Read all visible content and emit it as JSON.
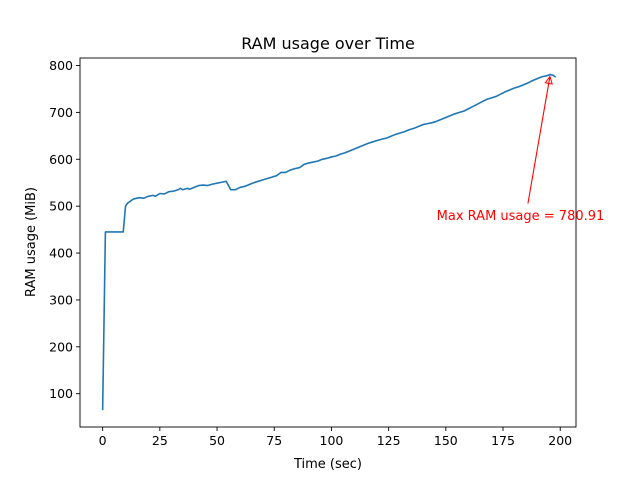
{
  "chart_data": {
    "type": "line",
    "title": "RAM usage over Time",
    "xlabel": "Time (sec)",
    "ylabel": "RAM usage (MiB)",
    "xlim": [
      -9.9,
      206.9
    ],
    "ylim": [
      29,
      816
    ],
    "x_ticks": [
      0,
      25,
      50,
      75,
      100,
      125,
      150,
      175,
      200
    ],
    "y_ticks": [
      100,
      200,
      300,
      400,
      500,
      600,
      700,
      800
    ],
    "grid": false,
    "legend": "none",
    "series_color": "#1f77b4",
    "series": [
      {
        "points": [
          [
            0,
            65
          ],
          [
            1.2,
            445
          ],
          [
            3,
            445
          ],
          [
            5,
            445
          ],
          [
            7,
            445
          ],
          [
            9,
            445
          ],
          [
            10,
            500
          ],
          [
            11,
            507
          ],
          [
            12,
            510
          ],
          [
            13,
            514
          ],
          [
            14,
            516
          ],
          [
            16,
            518
          ],
          [
            18,
            517
          ],
          [
            20,
            521
          ],
          [
            22,
            523
          ],
          [
            23,
            521
          ],
          [
            25,
            527
          ],
          [
            27,
            526
          ],
          [
            29,
            531
          ],
          [
            31,
            532
          ],
          [
            33,
            535
          ],
          [
            34,
            538
          ],
          [
            35,
            535
          ],
          [
            37,
            538
          ],
          [
            38,
            536
          ],
          [
            40,
            540
          ],
          [
            42,
            544
          ],
          [
            44,
            545
          ],
          [
            46,
            544
          ],
          [
            48,
            547
          ],
          [
            50,
            549
          ],
          [
            52,
            551
          ],
          [
            54,
            553
          ],
          [
            56,
            535
          ],
          [
            58,
            535
          ],
          [
            60,
            540
          ],
          [
            62,
            542
          ],
          [
            64,
            546
          ],
          [
            66,
            550
          ],
          [
            68,
            553
          ],
          [
            70,
            556
          ],
          [
            72,
            559
          ],
          [
            74,
            562
          ],
          [
            76,
            565
          ],
          [
            78,
            572
          ],
          [
            80,
            572
          ],
          [
            82,
            577
          ],
          [
            84,
            580
          ],
          [
            86,
            582
          ],
          [
            88,
            589
          ],
          [
            90,
            592
          ],
          [
            92,
            594
          ],
          [
            94,
            596
          ],
          [
            96,
            600
          ],
          [
            98,
            602
          ],
          [
            100,
            605
          ],
          [
            102,
            607
          ],
          [
            104,
            611
          ],
          [
            106,
            614
          ],
          [
            108,
            618
          ],
          [
            110,
            622
          ],
          [
            112,
            626
          ],
          [
            114,
            630
          ],
          [
            116,
            634
          ],
          [
            118,
            637
          ],
          [
            120,
            640
          ],
          [
            122,
            643
          ],
          [
            124,
            645
          ],
          [
            126,
            649
          ],
          [
            128,
            653
          ],
          [
            130,
            656
          ],
          [
            132,
            659
          ],
          [
            134,
            663
          ],
          [
            136,
            666
          ],
          [
            138,
            670
          ],
          [
            140,
            674
          ],
          [
            142,
            676
          ],
          [
            144,
            678
          ],
          [
            146,
            681
          ],
          [
            148,
            685
          ],
          [
            150,
            689
          ],
          [
            152,
            693
          ],
          [
            154,
            697
          ],
          [
            156,
            700
          ],
          [
            158,
            703
          ],
          [
            160,
            708
          ],
          [
            162,
            713
          ],
          [
            164,
            718
          ],
          [
            166,
            723
          ],
          [
            168,
            728
          ],
          [
            170,
            731
          ],
          [
            172,
            734
          ],
          [
            174,
            739
          ],
          [
            176,
            744
          ],
          [
            178,
            748
          ],
          [
            180,
            752
          ],
          [
            182,
            755
          ],
          [
            184,
            759
          ],
          [
            186,
            763
          ],
          [
            188,
            768
          ],
          [
            190,
            772
          ],
          [
            192,
            776
          ],
          [
            194,
            778
          ],
          [
            195.5,
            780.91
          ],
          [
            197,
            779
          ],
          [
            198,
            775
          ]
        ]
      }
    ],
    "annotation": {
      "text": "Max RAM usage = 780.91",
      "color": "#ff0000",
      "point": [
        195.5,
        780.91
      ],
      "text_position": [
        146,
        480
      ]
    }
  }
}
